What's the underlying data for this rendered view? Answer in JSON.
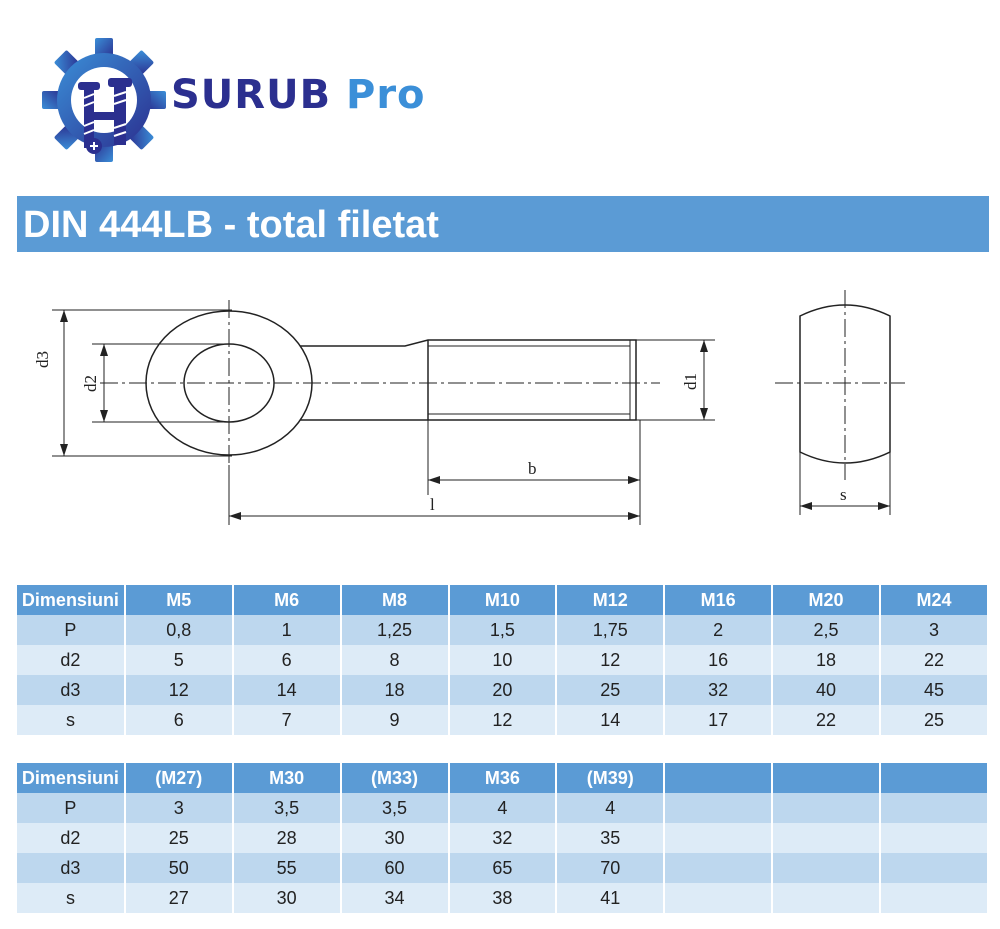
{
  "brand": {
    "name_part1": "SURUB",
    "name_part2": "Pro",
    "primary_color": "#2b2f8f",
    "accent_color": "#3b8fd8"
  },
  "title": "DIN 444LB - total filetat",
  "drawing": {
    "labels": {
      "d3": "d3",
      "d2": "d2",
      "d1": "d1",
      "b": "b",
      "l": "l",
      "s": "s"
    }
  },
  "tables": [
    {
      "header": [
        "Dimensiuni",
        "M5",
        "M6",
        "M8",
        "M10",
        "M12",
        "M16",
        "M20",
        "M24"
      ],
      "rows": [
        [
          "P",
          "0,8",
          "1",
          "1,25",
          "1,5",
          "1,75",
          "2",
          "2,5",
          "3"
        ],
        [
          "d2",
          "5",
          "6",
          "8",
          "10",
          "12",
          "16",
          "18",
          "22"
        ],
        [
          "d3",
          "12",
          "14",
          "18",
          "20",
          "25",
          "32",
          "40",
          "45"
        ],
        [
          "s",
          "6",
          "7",
          "9",
          "12",
          "14",
          "17",
          "22",
          "25"
        ]
      ]
    },
    {
      "header": [
        "Dimensiuni",
        "(M27)",
        "M30",
        "(M33)",
        "M36",
        "(M39)",
        "",
        "",
        ""
      ],
      "rows": [
        [
          "P",
          "3",
          "3,5",
          "3,5",
          "4",
          "4",
          "",
          "",
          ""
        ],
        [
          "d2",
          "25",
          "28",
          "30",
          "32",
          "35",
          "",
          "",
          ""
        ],
        [
          "d3",
          "50",
          "55",
          "60",
          "65",
          "70",
          "",
          "",
          ""
        ],
        [
          "s",
          "27",
          "30",
          "34",
          "38",
          "41",
          "",
          "",
          ""
        ]
      ]
    }
  ],
  "colors": {
    "header_bg": "#5b9bd5",
    "row_dark": "#bdd7ee",
    "row_light": "#ddebf7"
  }
}
